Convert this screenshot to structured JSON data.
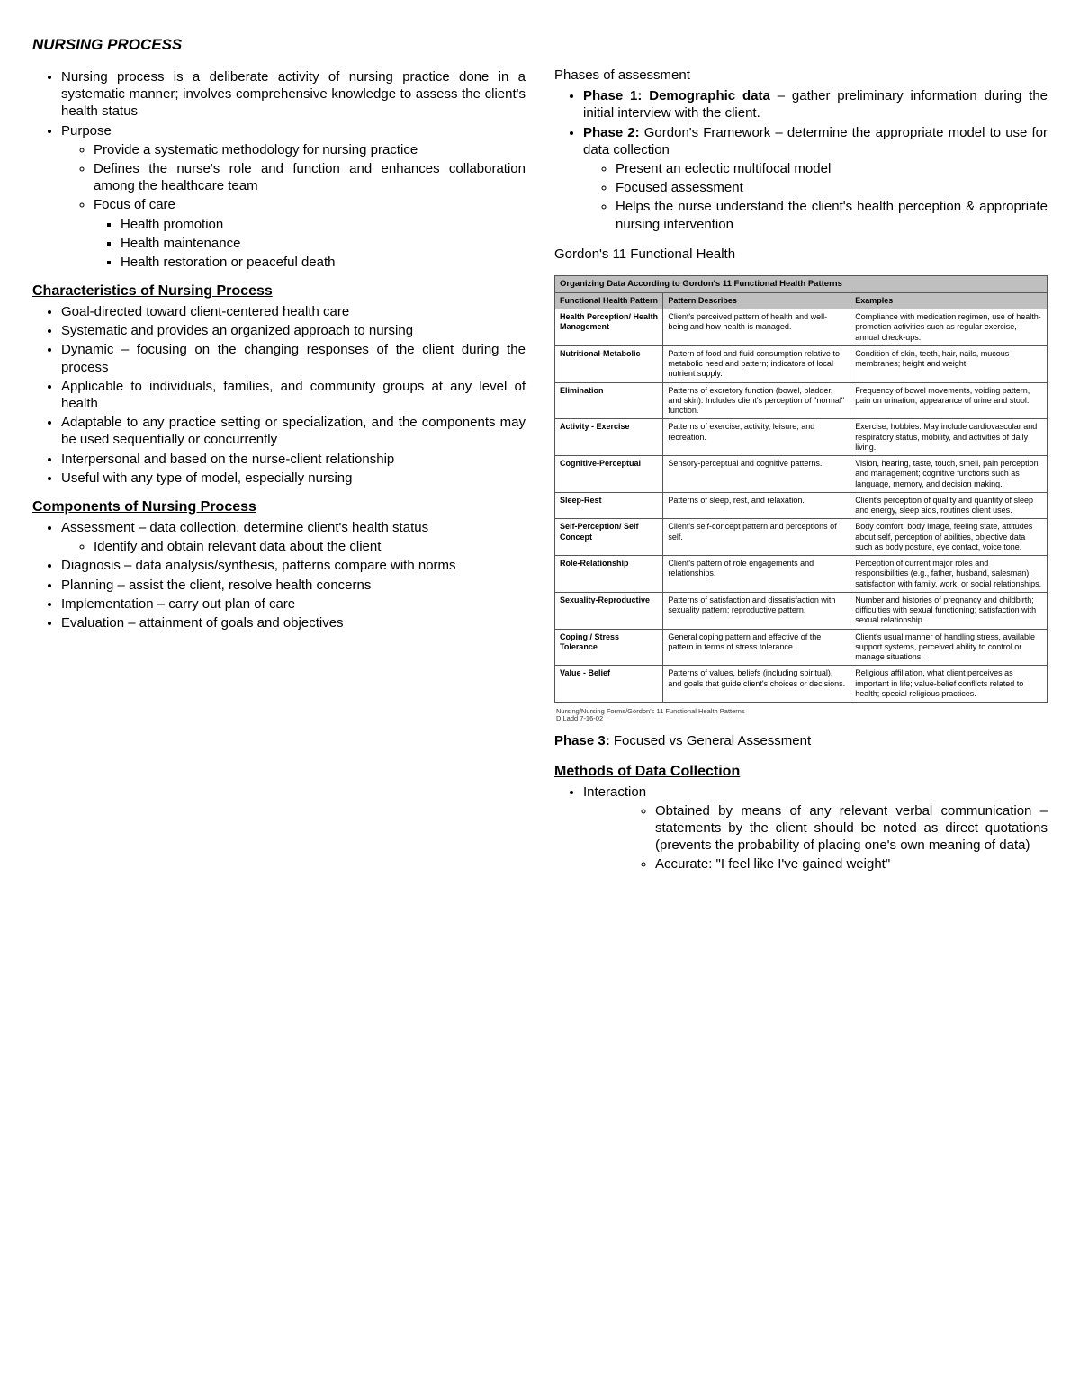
{
  "title": "NURSING PROCESS",
  "left": {
    "intro_bullets": [
      "Nursing process is a deliberate activity of nursing practice done in a systematic manner; involves comprehensive knowledge to assess the client's health status",
      "Purpose"
    ],
    "purpose_sub": [
      "Provide a systematic methodology for nursing practice",
      "Defines the nurse's role and function and enhances collaboration among the healthcare team",
      "Focus of care"
    ],
    "focus_sub": [
      "Health promotion",
      "Health maintenance",
      "Health restoration or peaceful death"
    ],
    "characteristics_heading": "Characteristics of Nursing Process",
    "characteristics": [
      "Goal-directed toward client-centered health care",
      "Systematic and provides an organized approach to nursing",
      "Dynamic – focusing on the changing responses of the client during the process",
      "Applicable to individuals, families, and community groups at any level of health",
      "Adaptable to any practice setting or specialization, and the components may be used sequentially or concurrently",
      "Interpersonal and based on the nurse-client relationship",
      "Useful with any type of model, especially nursing"
    ],
    "components_heading": "Components of Nursing Process",
    "components": [
      "Assessment – data collection, determine client's health status",
      "Diagnosis – data analysis/synthesis, patterns compare with norms",
      "Planning – assist the client, resolve health concerns",
      "Implementation – carry out plan of care",
      "Evaluation – attainment of goals and objectives"
    ],
    "assessment_sub": [
      "Identify and obtain relevant data about the client"
    ]
  },
  "right": {
    "phases_heading": "Phases of assessment",
    "phase1_bold": "Phase 1: Demographic data",
    "phase1_rest": " – gather preliminary information during the initial interview with the client.",
    "phase2_bold": "Phase 2:",
    "phase2_rest": " Gordon's Framework – determine the appropriate model to use for data collection",
    "phase2_sub": [
      "Present an eclectic multifocal model",
      "Focused assessment",
      "Helps the nurse understand the client's health perception & appropriate nursing intervention"
    ],
    "gordon_line": "Gordon's 11 Functional Health",
    "phase3_bold": "Phase 3:",
    "phase3_rest": " Focused vs General Assessment",
    "methods_heading": "Methods of Data Collection",
    "methods": [
      "Interaction"
    ],
    "interaction_sub": [
      "Obtained by means of any relevant verbal communication – statements by the client should be noted as direct quotations (prevents the probability of placing one's own meaning of data)",
      "Accurate: \"I feel like I've gained weight\""
    ]
  },
  "table": {
    "title": "Organizing Data According to Gordon's 11 Functional Health Patterns",
    "headers": [
      "Functional Health Pattern",
      "Pattern Describes",
      "Examples"
    ],
    "rows": [
      [
        "Health Perception/ Health Management",
        "Client's perceived pattern of health and well-being and how health is managed.",
        "Compliance with medication regimen, use of health-promotion activities such as regular exercise, annual check-ups."
      ],
      [
        "Nutritional-Metabolic",
        "Pattern of food and fluid consumption relative to metabolic need and pattern; indicators of local nutrient supply.",
        "Condition of skin, teeth, hair, nails, mucous membranes; height and weight."
      ],
      [
        "Elimination",
        "Patterns of excretory function (bowel, bladder, and skin). Includes client's perception of \"normal\" function.",
        "Frequency of bowel movements, voiding pattern, pain on urination, appearance of urine and stool."
      ],
      [
        "Activity - Exercise",
        "Patterns of exercise, activity, leisure, and recreation.",
        "Exercise, hobbies. May include cardiovascular and respiratory status, mobility, and activities of daily living."
      ],
      [
        "Cognitive-Perceptual",
        "Sensory-perceptual and cognitive patterns.",
        "Vision, hearing, taste, touch, smell, pain perception and management; cognitive functions such as language, memory, and decision making."
      ],
      [
        "Sleep-Rest",
        "Patterns of sleep, rest, and relaxation.",
        "Client's perception of quality and quantity of sleep and energy, sleep aids, routines client uses."
      ],
      [
        "Self-Perception/ Self Concept",
        "Client's self-concept pattern and perceptions of self.",
        "Body comfort, body image, feeling state, attitudes about self, perception of abilities, objective data such as body posture, eye contact, voice tone."
      ],
      [
        "Role-Relationship",
        "Client's pattern of role engagements and relationships.",
        "Perception of current major roles and responsibilities (e.g., father, husband, salesman); satisfaction with family, work, or social relationships."
      ],
      [
        "Sexuality-Reproductive",
        "Patterns of satisfaction and dissatisfaction with sexuality pattern; reproductive pattern.",
        "Number and histories of pregnancy and childbirth; difficulties with sexual functioning; satisfaction with sexual relationship."
      ],
      [
        "Coping / Stress Tolerance",
        "General coping pattern and effective of the pattern in terms of stress tolerance.",
        "Client's usual manner of handling stress, available support systems, perceived ability to control or manage situations."
      ],
      [
        "Value - Belief",
        "Patterns of values, beliefs (including spiritual), and goals that guide client's choices or decisions.",
        "Religious affiliation, what client perceives as important in life; value-belief conflicts related to health; special religious practices."
      ]
    ],
    "footnote": "Nursing/Nursing Forms/Gordon's 11 Functional Health Patterns\nD Ladd   7-16-02"
  }
}
